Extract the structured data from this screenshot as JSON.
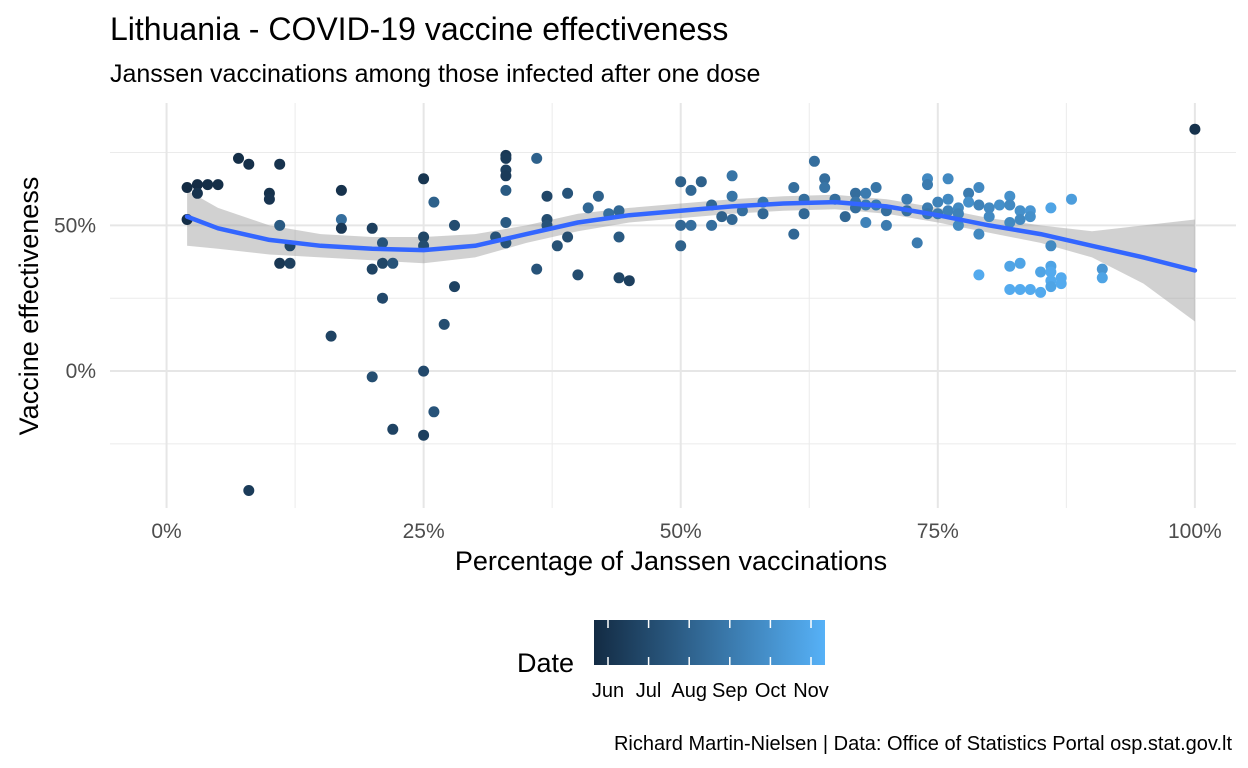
{
  "chart_data": {
    "type": "scatter",
    "title": "Lithuania - COVID-19 vaccine effectiveness",
    "subtitle": "Janssen vaccinations among those infected after one dose",
    "xlabel": "Percentage of Janssen vaccinations",
    "ylabel": "Vaccine effectiveness",
    "caption": "Richard Martin-Nielsen | Data: Office of Statistics Portal osp.stat.gov.lt",
    "xlim": [
      -0.055,
      1.04
    ],
    "ylim": [
      -0.47,
      0.92
    ],
    "x_ticks": [
      0,
      0.25,
      0.5,
      0.75,
      1.0
    ],
    "x_tick_labels": [
      "0%",
      "25%",
      "50%",
      "75%",
      "100%"
    ],
    "y_ticks": [
      0,
      0.5
    ],
    "y_tick_labels": [
      "0%",
      "50%"
    ],
    "grid": true,
    "legend": {
      "title": "Date",
      "position": "bottom",
      "type": "gradient",
      "labels": [
        "Jun",
        "Jul",
        "Aug",
        "Sep",
        "Oct",
        "Nov"
      ],
      "low_color": "#132B43",
      "high_color": "#56B1F7"
    },
    "trend_color": "#3366FF",
    "band_color": "#999999",
    "points": [
      {
        "x": 0.02,
        "y": 0.63,
        "t": 0.0
      },
      {
        "x": 0.02,
        "y": 0.52,
        "t": 0.02
      },
      {
        "x": 0.03,
        "y": 0.64,
        "t": 0.01
      },
      {
        "x": 0.03,
        "y": 0.61,
        "t": 0.06
      },
      {
        "x": 0.04,
        "y": 0.64,
        "t": 0.02
      },
      {
        "x": 0.05,
        "y": 0.64,
        "t": 0.03
      },
      {
        "x": 0.07,
        "y": 0.73,
        "t": 0.02
      },
      {
        "x": 0.08,
        "y": 0.71,
        "t": 0.04
      },
      {
        "x": 0.08,
        "y": -0.41,
        "t": 0.12
      },
      {
        "x": 0.1,
        "y": 0.61,
        "t": 0.05
      },
      {
        "x": 0.1,
        "y": 0.59,
        "t": 0.07
      },
      {
        "x": 0.11,
        "y": 0.71,
        "t": 0.06
      },
      {
        "x": 0.11,
        "y": 0.5,
        "t": 0.35
      },
      {
        "x": 0.11,
        "y": 0.37,
        "t": 0.09
      },
      {
        "x": 0.12,
        "y": 0.43,
        "t": 0.2
      },
      {
        "x": 0.12,
        "y": 0.37,
        "t": 0.15
      },
      {
        "x": 0.16,
        "y": 0.12,
        "t": 0.18
      },
      {
        "x": 0.17,
        "y": 0.62,
        "t": 0.05
      },
      {
        "x": 0.17,
        "y": 0.52,
        "t": 0.5
      },
      {
        "x": 0.17,
        "y": 0.49,
        "t": 0.1
      },
      {
        "x": 0.2,
        "y": 0.49,
        "t": 0.15
      },
      {
        "x": 0.2,
        "y": 0.35,
        "t": 0.18
      },
      {
        "x": 0.2,
        "y": -0.02,
        "t": 0.25
      },
      {
        "x": 0.21,
        "y": 0.44,
        "t": 0.3
      },
      {
        "x": 0.21,
        "y": 0.37,
        "t": 0.2
      },
      {
        "x": 0.21,
        "y": 0.25,
        "t": 0.22
      },
      {
        "x": 0.22,
        "y": 0.37,
        "t": 0.3
      },
      {
        "x": 0.22,
        "y": -0.2,
        "t": 0.18
      },
      {
        "x": 0.25,
        "y": 0.66,
        "t": 0.08
      },
      {
        "x": 0.25,
        "y": 0.46,
        "t": 0.2
      },
      {
        "x": 0.25,
        "y": 0.43,
        "t": 0.25
      },
      {
        "x": 0.25,
        "y": 0.0,
        "t": 0.22
      },
      {
        "x": 0.25,
        "y": -0.22,
        "t": 0.15
      },
      {
        "x": 0.26,
        "y": 0.58,
        "t": 0.4
      },
      {
        "x": 0.26,
        "y": -0.14,
        "t": 0.3
      },
      {
        "x": 0.27,
        "y": 0.16,
        "t": 0.25
      },
      {
        "x": 0.28,
        "y": 0.5,
        "t": 0.25
      },
      {
        "x": 0.28,
        "y": 0.29,
        "t": 0.18
      },
      {
        "x": 0.32,
        "y": 0.46,
        "t": 0.3
      },
      {
        "x": 0.33,
        "y": 0.51,
        "t": 0.35
      },
      {
        "x": 0.33,
        "y": 0.74,
        "t": 0.1
      },
      {
        "x": 0.33,
        "y": 0.73,
        "t": 0.12
      },
      {
        "x": 0.33,
        "y": 0.69,
        "t": 0.15
      },
      {
        "x": 0.33,
        "y": 0.67,
        "t": 0.12
      },
      {
        "x": 0.33,
        "y": 0.62,
        "t": 0.35
      },
      {
        "x": 0.33,
        "y": 0.44,
        "t": 0.3
      },
      {
        "x": 0.36,
        "y": 0.73,
        "t": 0.4
      },
      {
        "x": 0.36,
        "y": 0.35,
        "t": 0.3
      },
      {
        "x": 0.37,
        "y": 0.6,
        "t": 0.2
      },
      {
        "x": 0.37,
        "y": 0.52,
        "t": 0.25
      },
      {
        "x": 0.37,
        "y": 0.5,
        "t": 0.3
      },
      {
        "x": 0.38,
        "y": 0.43,
        "t": 0.28
      },
      {
        "x": 0.39,
        "y": 0.61,
        "t": 0.3
      },
      {
        "x": 0.39,
        "y": 0.46,
        "t": 0.25
      },
      {
        "x": 0.4,
        "y": 0.33,
        "t": 0.25
      },
      {
        "x": 0.41,
        "y": 0.56,
        "t": 0.45
      },
      {
        "x": 0.42,
        "y": 0.6,
        "t": 0.4
      },
      {
        "x": 0.43,
        "y": 0.54,
        "t": 0.5
      },
      {
        "x": 0.44,
        "y": 0.55,
        "t": 0.45
      },
      {
        "x": 0.44,
        "y": 0.46,
        "t": 0.35
      },
      {
        "x": 0.44,
        "y": 0.32,
        "t": 0.2
      },
      {
        "x": 0.45,
        "y": 0.31,
        "t": 0.15
      },
      {
        "x": 0.5,
        "y": 0.65,
        "t": 0.4
      },
      {
        "x": 0.5,
        "y": 0.5,
        "t": 0.45
      },
      {
        "x": 0.5,
        "y": 0.43,
        "t": 0.4
      },
      {
        "x": 0.51,
        "y": 0.62,
        "t": 0.45
      },
      {
        "x": 0.51,
        "y": 0.5,
        "t": 0.5
      },
      {
        "x": 0.52,
        "y": 0.65,
        "t": 0.4
      },
      {
        "x": 0.53,
        "y": 0.57,
        "t": 0.45
      },
      {
        "x": 0.53,
        "y": 0.5,
        "t": 0.5
      },
      {
        "x": 0.54,
        "y": 0.53,
        "t": 0.4
      },
      {
        "x": 0.55,
        "y": 0.67,
        "t": 0.55
      },
      {
        "x": 0.55,
        "y": 0.6,
        "t": 0.55
      },
      {
        "x": 0.55,
        "y": 0.52,
        "t": 0.45
      },
      {
        "x": 0.56,
        "y": 0.55,
        "t": 0.5
      },
      {
        "x": 0.58,
        "y": 0.58,
        "t": 0.55
      },
      {
        "x": 0.58,
        "y": 0.54,
        "t": 0.45
      },
      {
        "x": 0.61,
        "y": 0.63,
        "t": 0.5
      },
      {
        "x": 0.61,
        "y": 0.47,
        "t": 0.45
      },
      {
        "x": 0.62,
        "y": 0.59,
        "t": 0.5
      },
      {
        "x": 0.62,
        "y": 0.54,
        "t": 0.45
      },
      {
        "x": 0.63,
        "y": 0.72,
        "t": 0.5
      },
      {
        "x": 0.64,
        "y": 0.66,
        "t": 0.5
      },
      {
        "x": 0.64,
        "y": 0.63,
        "t": 0.55
      },
      {
        "x": 0.65,
        "y": 0.59,
        "t": 0.5
      },
      {
        "x": 0.66,
        "y": 0.53,
        "t": 0.45
      },
      {
        "x": 0.67,
        "y": 0.61,
        "t": 0.5
      },
      {
        "x": 0.67,
        "y": 0.58,
        "t": 0.55
      },
      {
        "x": 0.67,
        "y": 0.56,
        "t": 0.5
      },
      {
        "x": 0.68,
        "y": 0.61,
        "t": 0.6
      },
      {
        "x": 0.68,
        "y": 0.57,
        "t": 0.6
      },
      {
        "x": 0.68,
        "y": 0.51,
        "t": 0.65
      },
      {
        "x": 0.69,
        "y": 0.63,
        "t": 0.55
      },
      {
        "x": 0.69,
        "y": 0.57,
        "t": 0.6
      },
      {
        "x": 0.7,
        "y": 0.55,
        "t": 0.5
      },
      {
        "x": 0.7,
        "y": 0.5,
        "t": 0.6
      },
      {
        "x": 0.72,
        "y": 0.59,
        "t": 0.6
      },
      {
        "x": 0.72,
        "y": 0.55,
        "t": 0.5
      },
      {
        "x": 0.73,
        "y": 0.44,
        "t": 0.6
      },
      {
        "x": 0.74,
        "y": 0.66,
        "t": 0.7
      },
      {
        "x": 0.74,
        "y": 0.64,
        "t": 0.6
      },
      {
        "x": 0.74,
        "y": 0.56,
        "t": 0.6
      },
      {
        "x": 0.74,
        "y": 0.54,
        "t": 0.55
      },
      {
        "x": 0.75,
        "y": 0.58,
        "t": 0.65
      },
      {
        "x": 0.75,
        "y": 0.54,
        "t": 0.6
      },
      {
        "x": 0.76,
        "y": 0.66,
        "t": 0.7
      },
      {
        "x": 0.76,
        "y": 0.59,
        "t": 0.7
      },
      {
        "x": 0.76,
        "y": 0.55,
        "t": 0.65
      },
      {
        "x": 0.77,
        "y": 0.56,
        "t": 0.7
      },
      {
        "x": 0.77,
        "y": 0.54,
        "t": 0.65
      },
      {
        "x": 0.77,
        "y": 0.5,
        "t": 0.7
      },
      {
        "x": 0.78,
        "y": 0.61,
        "t": 0.6
      },
      {
        "x": 0.78,
        "y": 0.58,
        "t": 0.75
      },
      {
        "x": 0.79,
        "y": 0.63,
        "t": 0.7
      },
      {
        "x": 0.79,
        "y": 0.57,
        "t": 0.65
      },
      {
        "x": 0.79,
        "y": 0.47,
        "t": 0.7
      },
      {
        "x": 0.79,
        "y": 0.33,
        "t": 0.95
      },
      {
        "x": 0.8,
        "y": 0.56,
        "t": 0.7
      },
      {
        "x": 0.8,
        "y": 0.53,
        "t": 0.7
      },
      {
        "x": 0.81,
        "y": 0.57,
        "t": 0.75
      },
      {
        "x": 0.82,
        "y": 0.6,
        "t": 0.75
      },
      {
        "x": 0.82,
        "y": 0.57,
        "t": 0.7
      },
      {
        "x": 0.82,
        "y": 0.51,
        "t": 0.7
      },
      {
        "x": 0.82,
        "y": 0.36,
        "t": 0.9
      },
      {
        "x": 0.82,
        "y": 0.28,
        "t": 0.95
      },
      {
        "x": 0.83,
        "y": 0.55,
        "t": 0.75
      },
      {
        "x": 0.83,
        "y": 0.52,
        "t": 0.7
      },
      {
        "x": 0.83,
        "y": 0.37,
        "t": 0.9
      },
      {
        "x": 0.83,
        "y": 0.28,
        "t": 0.95
      },
      {
        "x": 0.84,
        "y": 0.55,
        "t": 0.8
      },
      {
        "x": 0.84,
        "y": 0.53,
        "t": 0.75
      },
      {
        "x": 0.84,
        "y": 0.28,
        "t": 0.95
      },
      {
        "x": 0.85,
        "y": 0.34,
        "t": 0.9
      },
      {
        "x": 0.85,
        "y": 0.27,
        "t": 0.95
      },
      {
        "x": 0.86,
        "y": 0.56,
        "t": 0.9
      },
      {
        "x": 0.86,
        "y": 0.43,
        "t": 0.7
      },
      {
        "x": 0.86,
        "y": 0.36,
        "t": 0.9
      },
      {
        "x": 0.86,
        "y": 0.34,
        "t": 0.95
      },
      {
        "x": 0.86,
        "y": 0.31,
        "t": 0.95
      },
      {
        "x": 0.86,
        "y": 0.29,
        "t": 0.9
      },
      {
        "x": 0.87,
        "y": 0.32,
        "t": 0.95
      },
      {
        "x": 0.87,
        "y": 0.3,
        "t": 0.95
      },
      {
        "x": 0.88,
        "y": 0.59,
        "t": 0.85
      },
      {
        "x": 0.91,
        "y": 0.35,
        "t": 0.8
      },
      {
        "x": 0.91,
        "y": 0.32,
        "t": 0.9
      },
      {
        "x": 1.0,
        "y": 0.83,
        "t": 0.05
      }
    ],
    "trend": [
      {
        "x": 0.02,
        "y": 0.53,
        "lo": 0.43,
        "hi": 0.62
      },
      {
        "x": 0.05,
        "y": 0.49,
        "lo": 0.42,
        "hi": 0.56
      },
      {
        "x": 0.1,
        "y": 0.45,
        "lo": 0.4,
        "hi": 0.5
      },
      {
        "x": 0.15,
        "y": 0.43,
        "lo": 0.39,
        "hi": 0.47
      },
      {
        "x": 0.2,
        "y": 0.42,
        "lo": 0.38,
        "hi": 0.46
      },
      {
        "x": 0.25,
        "y": 0.415,
        "lo": 0.37,
        "hi": 0.46
      },
      {
        "x": 0.3,
        "y": 0.43,
        "lo": 0.39,
        "hi": 0.47
      },
      {
        "x": 0.35,
        "y": 0.47,
        "lo": 0.44,
        "hi": 0.5
      },
      {
        "x": 0.4,
        "y": 0.51,
        "lo": 0.48,
        "hi": 0.54
      },
      {
        "x": 0.45,
        "y": 0.535,
        "lo": 0.51,
        "hi": 0.56
      },
      {
        "x": 0.5,
        "y": 0.55,
        "lo": 0.525,
        "hi": 0.575
      },
      {
        "x": 0.55,
        "y": 0.565,
        "lo": 0.54,
        "hi": 0.59
      },
      {
        "x": 0.6,
        "y": 0.575,
        "lo": 0.55,
        "hi": 0.6
      },
      {
        "x": 0.65,
        "y": 0.58,
        "lo": 0.555,
        "hi": 0.605
      },
      {
        "x": 0.7,
        "y": 0.565,
        "lo": 0.54,
        "hi": 0.59
      },
      {
        "x": 0.75,
        "y": 0.535,
        "lo": 0.51,
        "hi": 0.56
      },
      {
        "x": 0.8,
        "y": 0.5,
        "lo": 0.475,
        "hi": 0.525
      },
      {
        "x": 0.85,
        "y": 0.47,
        "lo": 0.44,
        "hi": 0.5
      },
      {
        "x": 0.9,
        "y": 0.43,
        "lo": 0.39,
        "hi": 0.48
      },
      {
        "x": 0.95,
        "y": 0.39,
        "lo": 0.3,
        "hi": 0.5
      },
      {
        "x": 1.0,
        "y": 0.345,
        "lo": 0.17,
        "hi": 0.52
      }
    ]
  }
}
